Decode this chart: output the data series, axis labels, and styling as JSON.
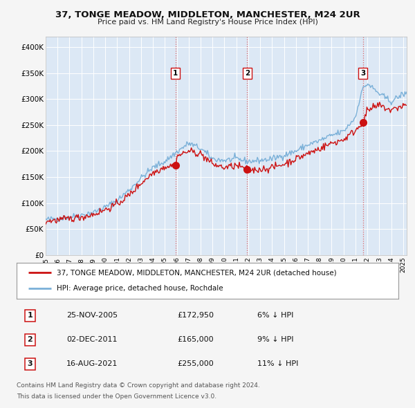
{
  "title": "37, TONGE MEADOW, MIDDLETON, MANCHESTER, M24 2UR",
  "subtitle": "Price paid vs. HM Land Registry's House Price Index (HPI)",
  "ylabel_ticks": [
    "£0",
    "£50K",
    "£100K",
    "£150K",
    "£200K",
    "£250K",
    "£300K",
    "£350K",
    "£400K"
  ],
  "ytick_values": [
    0,
    50000,
    100000,
    150000,
    200000,
    250000,
    300000,
    350000,
    400000
  ],
  "ylim": [
    0,
    420000
  ],
  "xlim_start": 1995.0,
  "xlim_end": 2025.3,
  "fig_bg_color": "#f5f5f5",
  "plot_bg_color": "#dce8f5",
  "grid_color": "#ffffff",
  "hpi_color": "#7ab0d8",
  "price_color": "#cc1111",
  "purchases": [
    {
      "label": "1",
      "date_num": 2005.9,
      "price": 172950,
      "date_str": "25-NOV-2005",
      "pct": "6%"
    },
    {
      "label": "2",
      "date_num": 2011.92,
      "price": 165000,
      "date_str": "02-DEC-2011",
      "pct": "9%"
    },
    {
      "label": "3",
      "date_num": 2021.62,
      "price": 255000,
      "date_str": "16-AUG-2021",
      "pct": "11%"
    }
  ],
  "legend_label_price": "37, TONGE MEADOW, MIDDLETON, MANCHESTER, M24 2UR (detached house)",
  "legend_label_hpi": "HPI: Average price, detached house, Rochdale",
  "footer1": "Contains HM Land Registry data © Crown copyright and database right 2024.",
  "footer2": "This data is licensed under the Open Government Licence v3.0."
}
